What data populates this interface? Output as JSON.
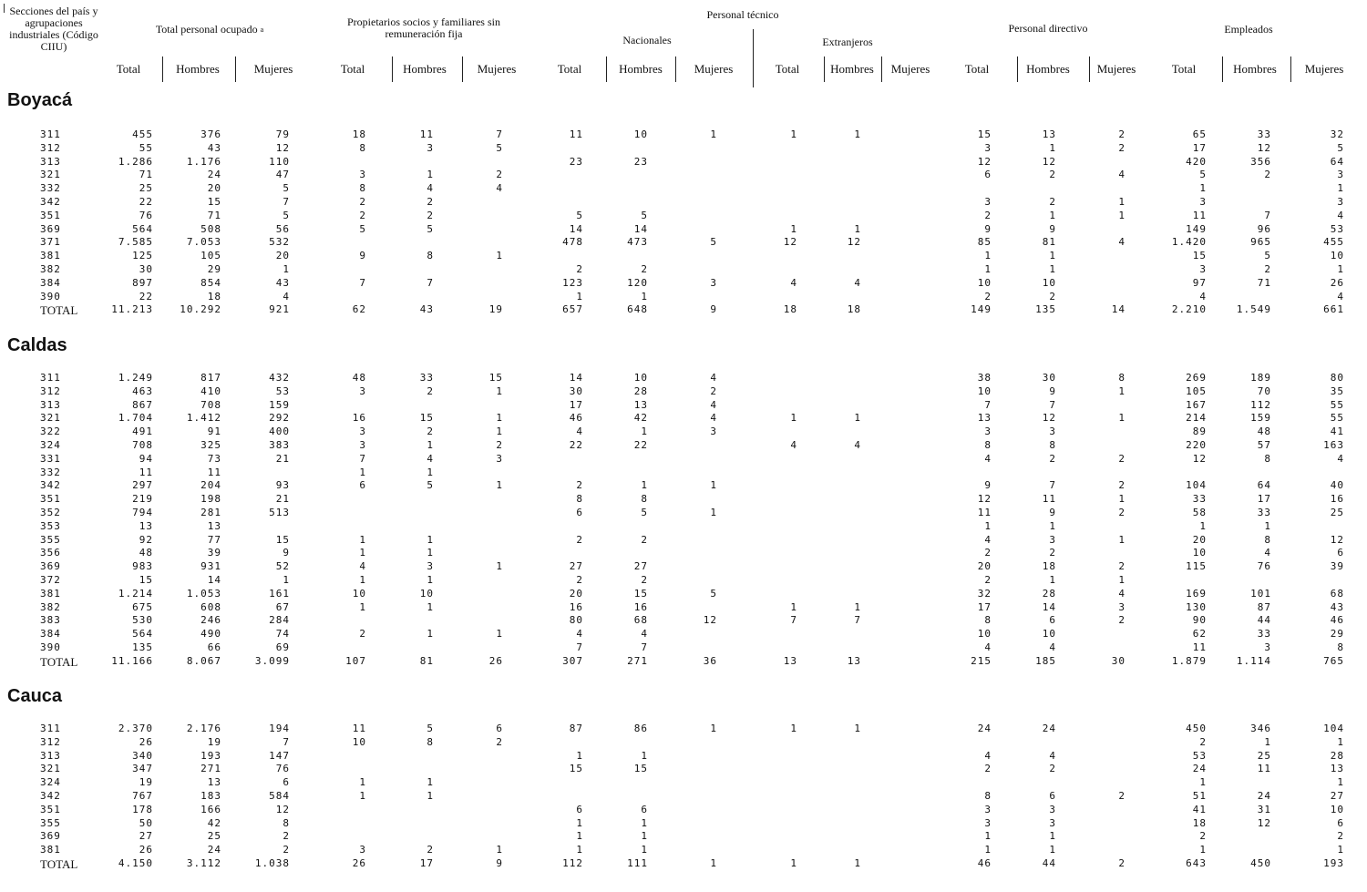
{
  "header": {
    "stub": "Secciones del país y agrupaciones industriales (Código CIIU)",
    "groups": {
      "total": "Total personal ocupado",
      "total_mark": "a",
      "propietarios": "Propietarios socios y familiares sin remuneración fija",
      "tecnico": "Personal técnico",
      "nacionales": "Nacionales",
      "extranjeros": "Extranjeros",
      "directivo": "Personal directivo",
      "empleados": "Empleados"
    },
    "subheaders": [
      "Total",
      "Hombres",
      "Mujeres",
      "Total",
      "Hombres",
      "Mujeres",
      "Total",
      "Hombres",
      "Mujeres",
      "Total",
      "Hombres",
      "Mujeres",
      "Total",
      "Hombres",
      "Mujeres",
      "Total",
      "Hombres",
      "Mujeres"
    ]
  },
  "sections": [
    {
      "name": "Boyacá",
      "rows": [
        {
          "code": "311",
          "v": [
            "455",
            "376",
            "79",
            "18",
            "11",
            "7",
            "11",
            "10",
            "1",
            "1",
            "1",
            "",
            "15",
            "13",
            "2",
            "65",
            "33",
            "32"
          ]
        },
        {
          "code": "312",
          "v": [
            "55",
            "43",
            "12",
            "8",
            "3",
            "5",
            "",
            "",
            "",
            "",
            "",
            "",
            "3",
            "1",
            "2",
            "17",
            "12",
            "5"
          ]
        },
        {
          "code": "313",
          "v": [
            "1.286",
            "1.176",
            "110",
            "",
            "",
            "",
            "23",
            "23",
            "",
            "",
            "",
            "",
            "12",
            "12",
            "",
            "420",
            "356",
            "64"
          ]
        },
        {
          "code": "321",
          "v": [
            "71",
            "24",
            "47",
            "3",
            "1",
            "2",
            "",
            "",
            "",
            "",
            "",
            "",
            "6",
            "2",
            "4",
            "5",
            "2",
            "3"
          ]
        },
        {
          "code": "332",
          "v": [
            "25",
            "20",
            "5",
            "8",
            "4",
            "4",
            "",
            "",
            "",
            "",
            "",
            "",
            "",
            "",
            "",
            "1",
            "",
            "1"
          ]
        },
        {
          "code": "342",
          "v": [
            "22",
            "15",
            "7",
            "2",
            "2",
            "",
            "",
            "",
            "",
            "",
            "",
            "",
            "3",
            "2",
            "1",
            "3",
            "",
            "3"
          ]
        },
        {
          "code": "351",
          "v": [
            "76",
            "71",
            "5",
            "2",
            "2",
            "",
            "5",
            "5",
            "",
            "",
            "",
            "",
            "2",
            "1",
            "1",
            "11",
            "7",
            "4"
          ]
        },
        {
          "code": "369",
          "v": [
            "564",
            "508",
            "56",
            "5",
            "5",
            "",
            "14",
            "14",
            "",
            "1",
            "1",
            "",
            "9",
            "9",
            "",
            "149",
            "96",
            "53"
          ]
        },
        {
          "code": "371",
          "v": [
            "7.585",
            "7.053",
            "532",
            "",
            "",
            "",
            "478",
            "473",
            "5",
            "12",
            "12",
            "",
            "85",
            "81",
            "4",
            "1.420",
            "965",
            "455"
          ]
        },
        {
          "code": "381",
          "v": [
            "125",
            "105",
            "20",
            "9",
            "8",
            "1",
            "",
            "",
            "",
            "",
            "",
            "",
            "1",
            "1",
            "",
            "15",
            "5",
            "10"
          ]
        },
        {
          "code": "382",
          "v": [
            "30",
            "29",
            "1",
            "",
            "",
            "",
            "2",
            "2",
            "",
            "",
            "",
            "",
            "1",
            "1",
            "",
            "3",
            "2",
            "1"
          ]
        },
        {
          "code": "384",
          "v": [
            "897",
            "854",
            "43",
            "7",
            "7",
            "",
            "123",
            "120",
            "3",
            "4",
            "4",
            "",
            "10",
            "10",
            "",
            "97",
            "71",
            "26"
          ]
        },
        {
          "code": "390",
          "v": [
            "22",
            "18",
            "4",
            "",
            "",
            "",
            "1",
            "1",
            "",
            "",
            "",
            "",
            "2",
            "2",
            "",
            "4",
            "",
            "4"
          ]
        },
        {
          "code": "TOTAL",
          "v": [
            "11.213",
            "10.292",
            "921",
            "62",
            "43",
            "19",
            "657",
            "648",
            "9",
            "18",
            "18",
            "",
            "149",
            "135",
            "14",
            "2.210",
            "1.549",
            "661"
          ]
        }
      ]
    },
    {
      "name": "Caldas",
      "rows": [
        {
          "code": "311",
          "v": [
            "1.249",
            "817",
            "432",
            "48",
            "33",
            "15",
            "14",
            "10",
            "4",
            "",
            "",
            "",
            "38",
            "30",
            "8",
            "269",
            "189",
            "80"
          ]
        },
        {
          "code": "312",
          "v": [
            "463",
            "410",
            "53",
            "3",
            "2",
            "1",
            "30",
            "28",
            "2",
            "",
            "",
            "",
            "10",
            "9",
            "1",
            "105",
            "70",
            "35"
          ]
        },
        {
          "code": "313",
          "v": [
            "867",
            "708",
            "159",
            "",
            "",
            "",
            "17",
            "13",
            "4",
            "",
            "",
            "",
            "7",
            "7",
            "",
            "167",
            "112",
            "55"
          ]
        },
        {
          "code": "321",
          "v": [
            "1.704",
            "1.412",
            "292",
            "16",
            "15",
            "1",
            "46",
            "42",
            "4",
            "1",
            "1",
            "",
            "13",
            "12",
            "1",
            "214",
            "159",
            "55"
          ]
        },
        {
          "code": "322",
          "v": [
            "491",
            "91",
            "400",
            "3",
            "2",
            "1",
            "4",
            "1",
            "3",
            "",
            "",
            "",
            "3",
            "3",
            "",
            "89",
            "48",
            "41"
          ]
        },
        {
          "code": "324",
          "v": [
            "708",
            "325",
            "383",
            "3",
            "1",
            "2",
            "22",
            "22",
            "",
            "4",
            "4",
            "",
            "8",
            "8",
            "",
            "220",
            "57",
            "163"
          ]
        },
        {
          "code": "331",
          "v": [
            "94",
            "73",
            "21",
            "7",
            "4",
            "3",
            "",
            "",
            "",
            "",
            "",
            "",
            "4",
            "2",
            "2",
            "12",
            "8",
            "4"
          ]
        },
        {
          "code": "332",
          "v": [
            "11",
            "11",
            "",
            "1",
            "1",
            "",
            "",
            "",
            "",
            "",
            "",
            "",
            "",
            "",
            "",
            "",
            "",
            ""
          ]
        },
        {
          "code": "342",
          "v": [
            "297",
            "204",
            "93",
            "6",
            "5",
            "1",
            "2",
            "1",
            "1",
            "",
            "",
            "",
            "9",
            "7",
            "2",
            "104",
            "64",
            "40"
          ]
        },
        {
          "code": "351",
          "v": [
            "219",
            "198",
            "21",
            "",
            "",
            "",
            "8",
            "8",
            "",
            "",
            "",
            "",
            "12",
            "11",
            "1",
            "33",
            "17",
            "16"
          ]
        },
        {
          "code": "352",
          "v": [
            "794",
            "281",
            "513",
            "",
            "",
            "",
            "6",
            "5",
            "1",
            "",
            "",
            "",
            "11",
            "9",
            "2",
            "58",
            "33",
            "25"
          ]
        },
        {
          "code": "353",
          "v": [
            "13",
            "13",
            "",
            "",
            "",
            "",
            "",
            "",
            "",
            "",
            "",
            "",
            "1",
            "1",
            "",
            "1",
            "1",
            ""
          ]
        },
        {
          "code": "355",
          "v": [
            "92",
            "77",
            "15",
            "1",
            "1",
            "",
            "2",
            "2",
            "",
            "",
            "",
            "",
            "4",
            "3",
            "1",
            "20",
            "8",
            "12"
          ]
        },
        {
          "code": "356",
          "v": [
            "48",
            "39",
            "9",
            "1",
            "1",
            "",
            "",
            "",
            "",
            "",
            "",
            "",
            "2",
            "2",
            "",
            "10",
            "4",
            "6"
          ]
        },
        {
          "code": "369",
          "v": [
            "983",
            "931",
            "52",
            "4",
            "3",
            "1",
            "27",
            "27",
            "",
            "",
            "",
            "",
            "20",
            "18",
            "2",
            "115",
            "76",
            "39"
          ]
        },
        {
          "code": "372",
          "v": [
            "15",
            "14",
            "1",
            "1",
            "1",
            "",
            "2",
            "2",
            "",
            "",
            "",
            "",
            "2",
            "1",
            "1",
            "",
            "",
            ""
          ]
        },
        {
          "code": "381",
          "v": [
            "1.214",
            "1.053",
            "161",
            "10",
            "10",
            "",
            "20",
            "15",
            "5",
            "",
            "",
            "",
            "32",
            "28",
            "4",
            "169",
            "101",
            "68"
          ]
        },
        {
          "code": "382",
          "v": [
            "675",
            "608",
            "67",
            "1",
            "1",
            "",
            "16",
            "16",
            "",
            "1",
            "1",
            "",
            "17",
            "14",
            "3",
            "130",
            "87",
            "43"
          ]
        },
        {
          "code": "383",
          "v": [
            "530",
            "246",
            "284",
            "",
            "",
            "",
            "80",
            "68",
            "12",
            "7",
            "7",
            "",
            "8",
            "6",
            "2",
            "90",
            "44",
            "46"
          ]
        },
        {
          "code": "384",
          "v": [
            "564",
            "490",
            "74",
            "2",
            "1",
            "1",
            "4",
            "4",
            "",
            "",
            "",
            "",
            "10",
            "10",
            "",
            "62",
            "33",
            "29"
          ]
        },
        {
          "code": "390",
          "v": [
            "135",
            "66",
            "69",
            "",
            "",
            "",
            "7",
            "7",
            "",
            "",
            "",
            "",
            "4",
            "4",
            "",
            "11",
            "3",
            "8"
          ]
        },
        {
          "code": "TOTAL",
          "v": [
            "11.166",
            "8.067",
            "3.099",
            "107",
            "81",
            "26",
            "307",
            "271",
            "36",
            "13",
            "13",
            "",
            "215",
            "185",
            "30",
            "1.879",
            "1.114",
            "765"
          ]
        }
      ]
    },
    {
      "name": "Cauca",
      "rows": [
        {
          "code": "311",
          "v": [
            "2.370",
            "2.176",
            "194",
            "11",
            "5",
            "6",
            "87",
            "86",
            "1",
            "1",
            "1",
            "",
            "24",
            "24",
            "",
            "450",
            "346",
            "104"
          ]
        },
        {
          "code": "312",
          "v": [
            "26",
            "19",
            "7",
            "10",
            "8",
            "2",
            "",
            "",
            "",
            "",
            "",
            "",
            "",
            "",
            "",
            "2",
            "1",
            "1"
          ]
        },
        {
          "code": "313",
          "v": [
            "340",
            "193",
            "147",
            "",
            "",
            "",
            "1",
            "1",
            "",
            "",
            "",
            "",
            "4",
            "4",
            "",
            "53",
            "25",
            "28"
          ]
        },
        {
          "code": "321",
          "v": [
            "347",
            "271",
            "76",
            "",
            "",
            "",
            "15",
            "15",
            "",
            "",
            "",
            "",
            "2",
            "2",
            "",
            "24",
            "11",
            "13"
          ]
        },
        {
          "code": "324",
          "v": [
            "19",
            "13",
            "6",
            "1",
            "1",
            "",
            "",
            "",
            "",
            "",
            "",
            "",
            "",
            "",
            "",
            "1",
            "",
            "1"
          ]
        },
        {
          "code": "342",
          "v": [
            "767",
            "183",
            "584",
            "1",
            "1",
            "",
            "",
            "",
            "",
            "",
            "",
            "",
            "8",
            "6",
            "2",
            "51",
            "24",
            "27"
          ]
        },
        {
          "code": "351",
          "v": [
            "178",
            "166",
            "12",
            "",
            "",
            "",
            "6",
            "6",
            "",
            "",
            "",
            "",
            "3",
            "3",
            "",
            "41",
            "31",
            "10"
          ]
        },
        {
          "code": "355",
          "v": [
            "50",
            "42",
            "8",
            "",
            "",
            "",
            "1",
            "1",
            "",
            "",
            "",
            "",
            "3",
            "3",
            "",
            "18",
            "12",
            "6"
          ]
        },
        {
          "code": "369",
          "v": [
            "27",
            "25",
            "2",
            "",
            "",
            "",
            "1",
            "1",
            "",
            "",
            "",
            "",
            "1",
            "1",
            "",
            "2",
            "",
            "2"
          ]
        },
        {
          "code": "381",
          "v": [
            "26",
            "24",
            "2",
            "3",
            "2",
            "1",
            "1",
            "1",
            "",
            "",
            "",
            "",
            "1",
            "1",
            "",
            "1",
            "",
            "1"
          ]
        },
        {
          "code": "TOTAL",
          "v": [
            "4.150",
            "3.112",
            "1.038",
            "26",
            "17",
            "9",
            "112",
            "111",
            "1",
            "1",
            "1",
            "",
            "46",
            "44",
            "2",
            "643",
            "450",
            "193"
          ]
        }
      ]
    }
  ]
}
